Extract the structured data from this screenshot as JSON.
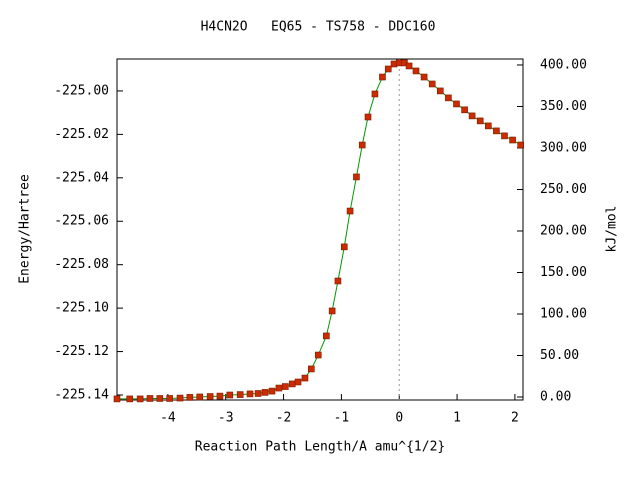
{
  "chart_data": {
    "type": "line",
    "title": "H4CN2O   EQ65 - TS758 - DDC160",
    "xlabel": "Reaction Path Length/A amu^{1/2}",
    "ylabel": "Energy/Hartree",
    "y2label": "kJ/mol",
    "x": [
      -4.88,
      -4.66,
      -4.48,
      -4.31,
      -4.14,
      -3.97,
      -3.79,
      -3.62,
      -3.45,
      -3.27,
      -3.1,
      -2.93,
      -2.75,
      -2.58,
      -2.44,
      -2.32,
      -2.2,
      -2.08,
      -1.97,
      -1.85,
      -1.75,
      -1.63,
      -1.52,
      -1.4,
      -1.26,
      -1.16,
      -1.06,
      -0.95,
      -0.85,
      -0.74,
      -0.64,
      -0.54,
      -0.42,
      -0.29,
      -0.19,
      -0.09,
      0,
      0.09,
      0.17,
      0.29,
      0.43,
      0.57,
      0.71,
      0.85,
      0.99,
      1.13,
      1.26,
      1.4,
      1.54,
      1.68,
      1.82,
      1.96,
      2.1
    ],
    "series": [
      {
        "name": "Energy",
        "color": "#009900",
        "marker_color": "#cc2a00",
        "values": [
          -225.1418,
          -225.1418,
          -225.1418,
          -225.1416,
          -225.1416,
          -225.1416,
          -225.1414,
          -225.1411,
          -225.1409,
          -225.1407,
          -225.1405,
          -225.14,
          -225.1398,
          -225.1395,
          -225.1393,
          -225.1388,
          -225.1382,
          -225.1368,
          -225.1361,
          -225.1349,
          -225.134,
          -225.1322,
          -225.128,
          -225.1216,
          -225.1128,
          -225.1013,
          -225.0875,
          -225.0718,
          -225.0553,
          -225.0396,
          -225.0249,
          -225.012,
          -225.0014,
          -224.9936,
          -224.9899,
          -224.9876,
          -224.9871,
          -224.9871,
          -224.9885,
          -224.9908,
          -224.9936,
          -224.9968,
          -225.0,
          -225.0032,
          -225.006,
          -225.0087,
          -225.0115,
          -225.0138,
          -225.0161,
          -225.0184,
          -225.0207,
          -225.0226,
          -225.0249
        ]
      }
    ],
    "xlim": [
      -4.88,
      2.14
    ],
    "ylim": [
      -225.1423,
      -224.9853
    ],
    "y2lim": [
      -3.6,
      407.2
    ],
    "xticks": [
      -4,
      -3,
      -2,
      -1,
      0,
      1,
      2
    ],
    "yticks": [
      {
        "value": -225.14,
        "label": "-225.14"
      },
      {
        "value": -225.12,
        "label": "-225.12"
      },
      {
        "value": -225.1,
        "label": "-225.10"
      },
      {
        "value": -225.08,
        "label": "-225.08"
      },
      {
        "value": -225.06,
        "label": "-225.06"
      },
      {
        "value": -225.04,
        "label": "-225.04"
      },
      {
        "value": -225.02,
        "label": "-225.02"
      },
      {
        "value": -225.0,
        "label": "-225.00"
      }
    ],
    "y2ticks": [
      {
        "value": 0,
        "label": "0.00"
      },
      {
        "value": 50,
        "label": "50.00"
      },
      {
        "value": 100,
        "label": "100.00"
      },
      {
        "value": 150,
        "label": "150.00"
      },
      {
        "value": 200,
        "label": "200.00"
      },
      {
        "value": 250,
        "label": "250.00"
      },
      {
        "value": 300,
        "label": "300.00"
      },
      {
        "value": 350,
        "label": "350.00"
      },
      {
        "value": 400,
        "label": "400.00"
      }
    ],
    "reference_line_x": 0,
    "grid": false
  }
}
